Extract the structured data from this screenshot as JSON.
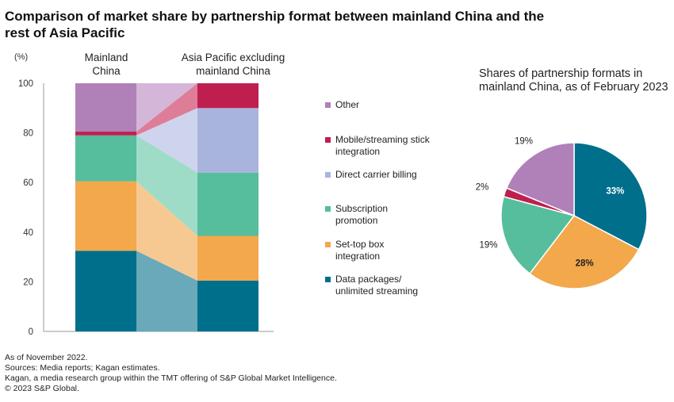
{
  "title": "Comparison of market share by partnership format between mainland China and the rest of Asia Pacific",
  "notes": [
    "As of November 2022.",
    "Sources: Media reports; Kagan estimates.",
    "Kagan, a media research group within the TMT offering of S&P Global Market Intelligence.",
    "© 2023 S&P Global."
  ],
  "chart_data": [
    {
      "type": "bar",
      "stacked": true,
      "unit_label": "(%)",
      "categories": [
        "Mainland China",
        "Asia Pacific excluding mainland China"
      ],
      "ylim": [
        0,
        100
      ],
      "yticks": [
        0,
        20,
        40,
        60,
        80,
        100
      ],
      "series": [
        {
          "name": "Data packages/ unlimited streaming",
          "color": "#006f8c",
          "fade": "#69a9b9",
          "values": [
            32.5,
            20.5
          ]
        },
        {
          "name": "Set-top box integration",
          "color": "#f2a84b",
          "fade": "#f7c992",
          "values": [
            28,
            18
          ]
        },
        {
          "name": "Subscription promotion",
          "color": "#56bd9d",
          "fade": "#9edcc8",
          "values": [
            18.5,
            25.5
          ]
        },
        {
          "name": "Direct carrier billing",
          "color": "#a9b4dd",
          "fade": "#ced4ed",
          "values": [
            0,
            26
          ]
        },
        {
          "name": "Mobile/streaming stick integration",
          "color": "#bf1f4f",
          "fade": "#de7d98",
          "values": [
            1.5,
            10
          ]
        },
        {
          "name": "Other",
          "color": "#b081b8",
          "fade": "#d3b6d8",
          "values": [
            19.5,
            0
          ]
        }
      ],
      "legend": [
        {
          "label": "Other",
          "color": "#b081b8"
        },
        {
          "label": "Mobile/streaming stick integration",
          "color": "#bf1f4f"
        },
        {
          "label": "Direct carrier billing",
          "color": "#a9b4dd"
        },
        {
          "label": "Subscription promotion",
          "color": "#56bd9d"
        },
        {
          "label": "Set-top box integration",
          "color": "#f2a84b"
        },
        {
          "label": "Data packages/ unlimited streaming",
          "color": "#006f8c"
        }
      ]
    },
    {
      "type": "pie",
      "title": "Shares of partnership formats in mainland China, as of February 2023",
      "slices": [
        {
          "name": "Data packages/ unlimited streaming",
          "value": 33,
          "label": "33%",
          "color": "#006f8c"
        },
        {
          "name": "Set-top box integration",
          "value": 28,
          "label": "28%",
          "color": "#f2a84b"
        },
        {
          "name": "Subscription promotion",
          "value": 19,
          "label": "19%",
          "color": "#56bd9d"
        },
        {
          "name": "Mobile/streaming stick integration",
          "value": 2,
          "label": "2%",
          "color": "#bf1f4f"
        },
        {
          "name": "Other",
          "value": 19,
          "label": "19%",
          "color": "#b081b8"
        }
      ]
    }
  ]
}
